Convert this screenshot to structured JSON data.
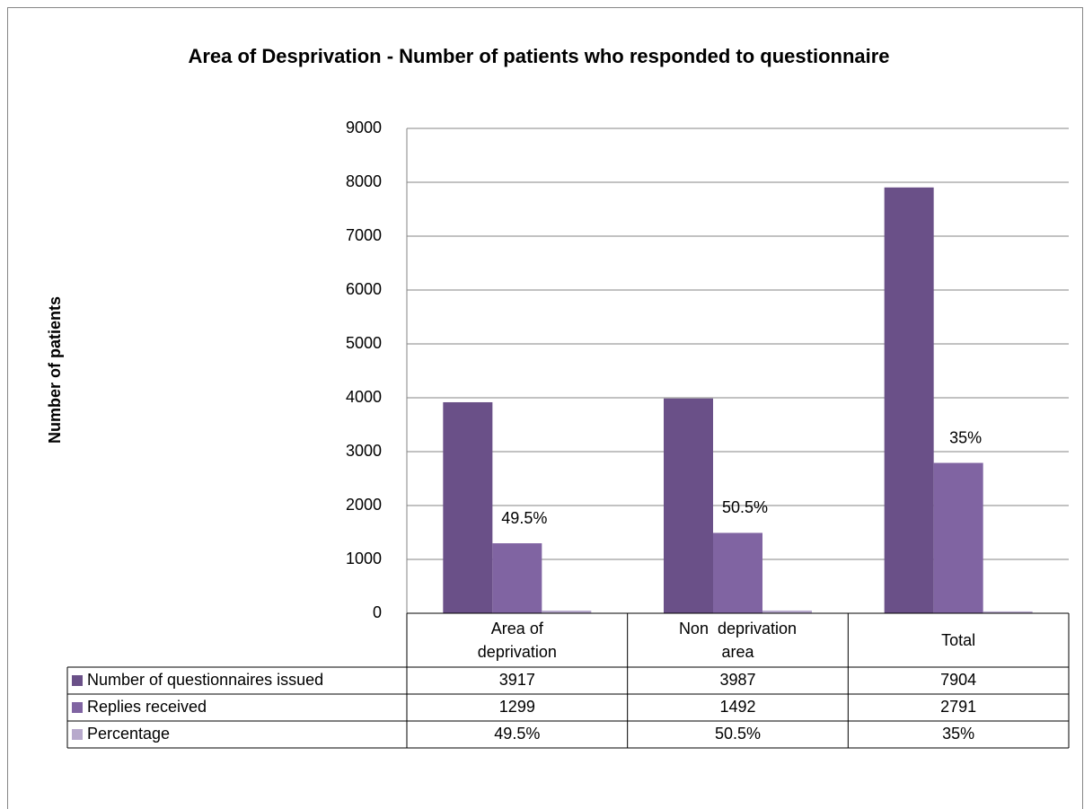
{
  "chart_data": {
    "type": "bar",
    "title": "Area of Desprivation - Number of patients who responded to questionnaire",
    "y_label": "Number of patients",
    "categories": [
      "Area of deprivation",
      "Non  deprivation area",
      "Total"
    ],
    "series": [
      {
        "name": "Number of questionnaires issued",
        "color": "#6a5088",
        "values": [
          3917,
          3987,
          7904
        ]
      },
      {
        "name": "Replies  received",
        "color": "#8064a2",
        "values": [
          1299,
          1492,
          2791
        ]
      },
      {
        "name": "Percentage",
        "color": "#b7a9cc",
        "values": [
          49.5,
          50.5,
          35
        ],
        "value_labels": [
          "49.5%",
          "50.5%",
          "35%"
        ]
      }
    ],
    "ylim": [
      0,
      9000
    ],
    "yticks": [
      0,
      1000,
      2000,
      3000,
      4000,
      5000,
      6000,
      7000,
      8000,
      9000
    ],
    "grid": true,
    "data_table": true
  }
}
